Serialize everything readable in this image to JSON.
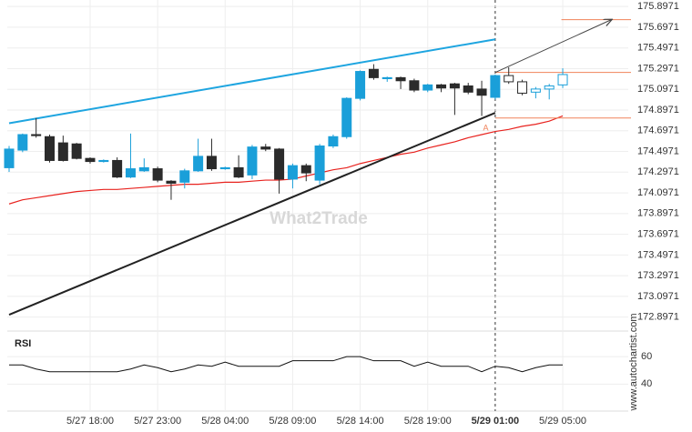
{
  "chart_data": [
    {
      "type": "candlestick",
      "categories": [
        null,
        null,
        null,
        null,
        null,
        null,
        "5/27 18:00",
        null,
        null,
        null,
        null,
        "5/27 23:00",
        null,
        null,
        null,
        null,
        "5/28 04:00",
        null,
        null,
        null,
        null,
        "5/28 09:00",
        null,
        null,
        null,
        null,
        "5/28 14:00",
        null,
        null,
        null,
        null,
        "5/28 19:00",
        null,
        null,
        null,
        null,
        "5/29 01:00",
        null,
        null,
        null,
        null,
        "5/29 05:00"
      ],
      "open": [
        174.34,
        174.51,
        174.66,
        174.64,
        174.58,
        174.57,
        174.43,
        174.4,
        174.41,
        174.25,
        174.31,
        174.33,
        174.21,
        174.2,
        174.31,
        174.45,
        174.33,
        174.34,
        174.27,
        174.54,
        174.52,
        174.23,
        174.36,
        174.22,
        174.55,
        174.64,
        175.01,
        175.29,
        175.2,
        175.21,
        175.18,
        175.09,
        175.14,
        175.15,
        175.13,
        175.1,
        175.02,
        175.23,
        175.17,
        175.07,
        175.1,
        175.14
      ],
      "high": [
        174.55,
        174.67,
        174.82,
        174.66,
        174.65,
        174.58,
        174.44,
        174.42,
        174.44,
        174.67,
        174.43,
        174.35,
        174.22,
        174.33,
        174.62,
        174.62,
        174.35,
        174.46,
        174.56,
        174.57,
        174.53,
        174.38,
        174.38,
        174.57,
        174.66,
        175.02,
        175.28,
        175.34,
        175.22,
        175.22,
        175.2,
        175.15,
        175.15,
        175.16,
        175.16,
        175.18,
        175.24,
        175.31,
        175.19,
        175.12,
        175.15,
        175.3
      ],
      "low": [
        174.3,
        174.49,
        174.63,
        174.39,
        174.4,
        174.42,
        174.38,
        174.39,
        174.24,
        174.24,
        174.3,
        174.2,
        174.03,
        174.14,
        174.3,
        174.31,
        174.32,
        174.24,
        174.23,
        174.5,
        174.09,
        174.14,
        174.21,
        174.18,
        174.53,
        174.62,
        174.99,
        175.19,
        175.17,
        175.1,
        175.07,
        175.07,
        175.07,
        174.85,
        175.05,
        174.84,
        175.0,
        175.15,
        175.04,
        175.01,
        175.0,
        175.11
      ],
      "close": [
        174.52,
        174.66,
        174.65,
        174.41,
        174.41,
        174.43,
        174.4,
        174.41,
        174.25,
        174.33,
        174.34,
        174.22,
        174.19,
        174.31,
        174.45,
        174.33,
        174.34,
        174.25,
        174.54,
        174.52,
        174.23,
        174.36,
        174.29,
        174.55,
        174.64,
        175.01,
        175.27,
        175.21,
        175.21,
        175.18,
        175.09,
        175.14,
        175.11,
        175.11,
        175.07,
        175.04,
        175.23,
        175.17,
        175.06,
        175.1,
        175.13,
        175.24
      ],
      "up_color": "#1a9fd9",
      "down_color": "#2b2b2b",
      "hollow_after": "5/29 01:00",
      "series": [
        {
          "color": "#e8231f",
          "values": [
            173.99,
            174.03,
            174.05,
            174.07,
            174.09,
            174.11,
            174.12,
            174.13,
            174.13,
            174.14,
            174.15,
            174.16,
            174.17,
            174.18,
            174.18,
            174.19,
            174.2,
            174.2,
            174.21,
            174.22,
            174.22,
            174.23,
            174.26,
            174.29,
            174.32,
            174.34,
            174.38,
            174.41,
            174.44,
            174.47,
            174.49,
            174.53,
            174.56,
            174.59,
            174.63,
            174.66,
            174.69,
            174.71,
            174.74,
            174.76,
            174.79,
            174.84
          ]
        }
      ],
      "trendlines": [
        {
          "color": "#1ea5e0",
          "x": [
            0,
            36
          ],
          "values": [
            174.77,
            175.58
          ]
        },
        {
          "color": "#222222",
          "x": [
            0,
            36
          ],
          "values": [
            172.92,
            174.87
          ]
        },
        {
          "color": "#444444",
          "x": [
            36,
            44.6
          ],
          "values": [
            175.26,
            175.77
          ],
          "arrow": true
        }
      ],
      "levels": [
        {
          "value": 175.77,
          "from": 40.9
        },
        {
          "value": 175.26,
          "from": 36
        },
        {
          "value": 174.82,
          "from": 36
        }
      ],
      "level_color": "#f0825a",
      "annotation": {
        "text": "A",
        "x": 35.3,
        "value": 174.72
      },
      "watermark": "What2Trade",
      "source": "www.autochartist.com",
      "ylim": [
        172.78,
        175.96
      ],
      "yticks": [
        175.8971,
        175.6971,
        175.4971,
        175.2971,
        175.0971,
        174.8971,
        174.6971,
        174.4971,
        174.2971,
        174.0971,
        173.8971,
        173.6971,
        173.4971,
        173.2971,
        173.0971,
        172.8971
      ],
      "grid": true
    },
    {
      "type": "line",
      "title": "RSI",
      "color": "#111111",
      "values": [
        54,
        54,
        51,
        49,
        49,
        49,
        49,
        49,
        49,
        51,
        54,
        52,
        49,
        51,
        54,
        53,
        56,
        53,
        53,
        53,
        53,
        57,
        57,
        57,
        57,
        60,
        60,
        57,
        57,
        57,
        53,
        56,
        53,
        53,
        53,
        49,
        53,
        52,
        49,
        52,
        54,
        54
      ],
      "ylim": [
        21,
        78
      ],
      "yticks": [
        60,
        40
      ],
      "grid": true
    }
  ]
}
